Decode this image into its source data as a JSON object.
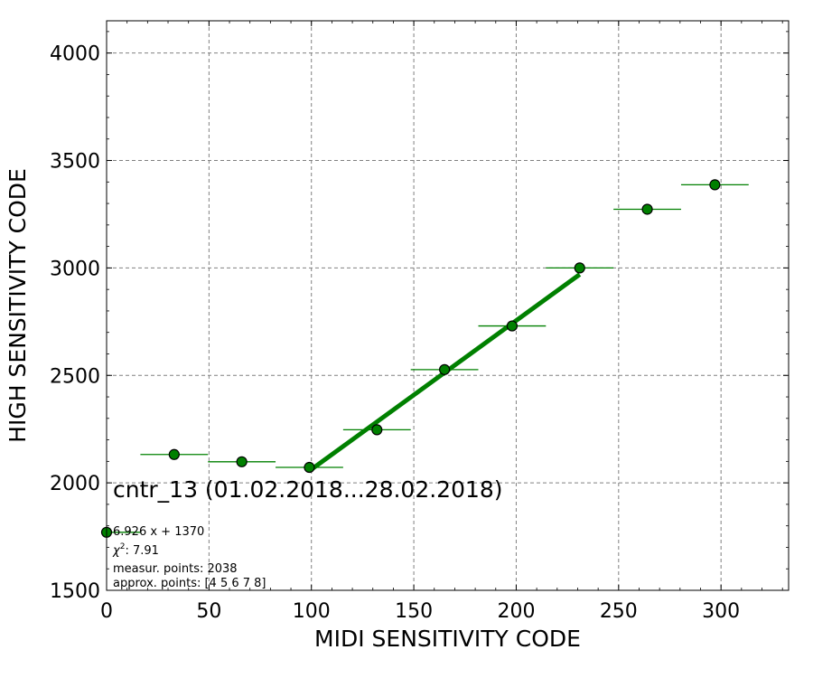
{
  "chart_data": {
    "type": "scatter",
    "xlabel": "MIDI SENSITIVITY CODE",
    "ylabel": "HIGH SENSITIVITY CODE",
    "xlim": [
      0,
      333
    ],
    "ylim": [
      1500,
      4150
    ],
    "x_ticks": [
      0,
      50,
      100,
      150,
      200,
      250,
      300
    ],
    "y_ticks": [
      1500,
      2000,
      2500,
      3000,
      3500,
      4000
    ],
    "grid": true,
    "colors": {
      "marker": "#008000",
      "fit_line": "#008000"
    },
    "series": [
      {
        "points": [
          {
            "x": 0,
            "y": 1770,
            "xerr": 16.5
          },
          {
            "x": 33,
            "y": 2132,
            "xerr": 16.5
          },
          {
            "x": 66,
            "y": 2098,
            "xerr": 16.5
          },
          {
            "x": 99,
            "y": 2072,
            "xerr": 16.5
          },
          {
            "x": 132,
            "y": 2247,
            "xerr": 16.5
          },
          {
            "x": 165,
            "y": 2527,
            "xerr": 16.5
          },
          {
            "x": 198,
            "y": 2730,
            "xerr": 16.5
          },
          {
            "x": 231,
            "y": 3000,
            "xerr": 16.5
          },
          {
            "x": 264,
            "y": 3273,
            "xerr": 16.5
          },
          {
            "x": 297,
            "y": 3387,
            "xerr": 16.5
          }
        ]
      }
    ],
    "fit": {
      "slope": 6.926,
      "intercept": 1370,
      "x_range": [
        99,
        231
      ]
    },
    "annotations": {
      "title": "cntr_13 (01.02.2018...28.02.2018)",
      "equation": "6.926 x + 1370",
      "chi2_symbol": "χ",
      "chi2_exponent": "2",
      "chi2_value": ": 7.91",
      "measur_points": "measur. points: 2038",
      "approx_points": "approx. points: [4 5 6 7 8]"
    }
  }
}
